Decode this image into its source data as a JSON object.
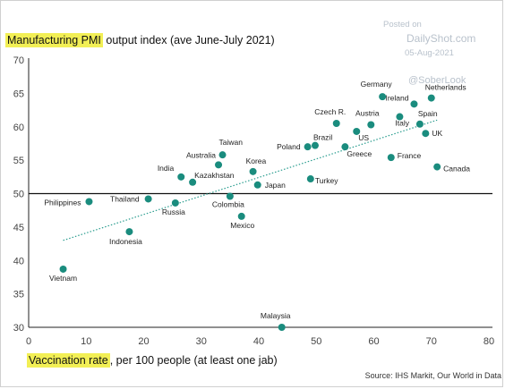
{
  "watermark": {
    "posted": "Posted on",
    "site": "DailyShot.com",
    "date": "05-Aug-2021",
    "handle": "@SoberLook"
  },
  "chart_data": {
    "type": "scatter",
    "title_highlight": "Manufacturing PMI",
    "title_rest": " output index (ave June-July 2021)",
    "xlabel_highlight": "Vaccination rate",
    "xlabel_rest": ", per 100 people (at least one jab)",
    "source": "Source: IHS Markit, Our World in Data",
    "xlim": [
      0,
      80
    ],
    "ylim": [
      30,
      70
    ],
    "xticks": [
      0,
      10,
      20,
      30,
      40,
      50,
      60,
      70,
      80
    ],
    "yticks": [
      30,
      35,
      40,
      45,
      50,
      55,
      60,
      65,
      70
    ],
    "reference_line_y": 50,
    "trendline": {
      "x": [
        6,
        71
      ],
      "y": [
        43,
        61
      ]
    },
    "point_color": "#1a8c7e",
    "points": [
      {
        "label": "Vietnam",
        "x": 6,
        "y": 38.7
      },
      {
        "label": "Philippines",
        "x": 10.5,
        "y": 48.8
      },
      {
        "label": "Indonesia",
        "x": 17.5,
        "y": 44.3
      },
      {
        "label": "Thailand",
        "x": 20.8,
        "y": 49.2
      },
      {
        "label": "Russia",
        "x": 25.5,
        "y": 48.6
      },
      {
        "label": "India",
        "x": 26.5,
        "y": 52.5
      },
      {
        "label": "Kazakhstan",
        "x": 28.5,
        "y": 51.7
      },
      {
        "label": "Australia",
        "x": 33.0,
        "y": 54.3
      },
      {
        "label": "Taiwan",
        "x": 33.7,
        "y": 55.8
      },
      {
        "label": "Colombia",
        "x": 35.0,
        "y": 49.6
      },
      {
        "label": "Mexico",
        "x": 37.0,
        "y": 46.6
      },
      {
        "label": "Korea",
        "x": 39.0,
        "y": 53.3
      },
      {
        "label": "Japan",
        "x": 39.8,
        "y": 51.3
      },
      {
        "label": "Poland",
        "x": 48.5,
        "y": 57.0
      },
      {
        "label": "Brazil",
        "x": 49.8,
        "y": 57.2
      },
      {
        "label": "Turkey",
        "x": 49.0,
        "y": 52.2
      },
      {
        "label": "Czech R.",
        "x": 53.5,
        "y": 60.5
      },
      {
        "label": "Greece",
        "x": 55.0,
        "y": 57.0
      },
      {
        "label": "US",
        "x": 57.0,
        "y": 59.3
      },
      {
        "label": "Austria",
        "x": 59.5,
        "y": 60.3
      },
      {
        "label": "Germany",
        "x": 61.5,
        "y": 64.5
      },
      {
        "label": "France",
        "x": 63.0,
        "y": 55.4
      },
      {
        "label": "Italy",
        "x": 64.5,
        "y": 61.5
      },
      {
        "label": "Ireland",
        "x": 67.0,
        "y": 63.4
      },
      {
        "label": "Spain",
        "x": 68.0,
        "y": 60.4
      },
      {
        "label": "UK",
        "x": 69.0,
        "y": 59.0
      },
      {
        "label": "Netherlands",
        "x": 70.0,
        "y": 64.3
      },
      {
        "label": "Canada",
        "x": 71.0,
        "y": 54.0
      },
      {
        "label": "Malaysia",
        "x": 44.0,
        "y": 30.0
      }
    ]
  }
}
